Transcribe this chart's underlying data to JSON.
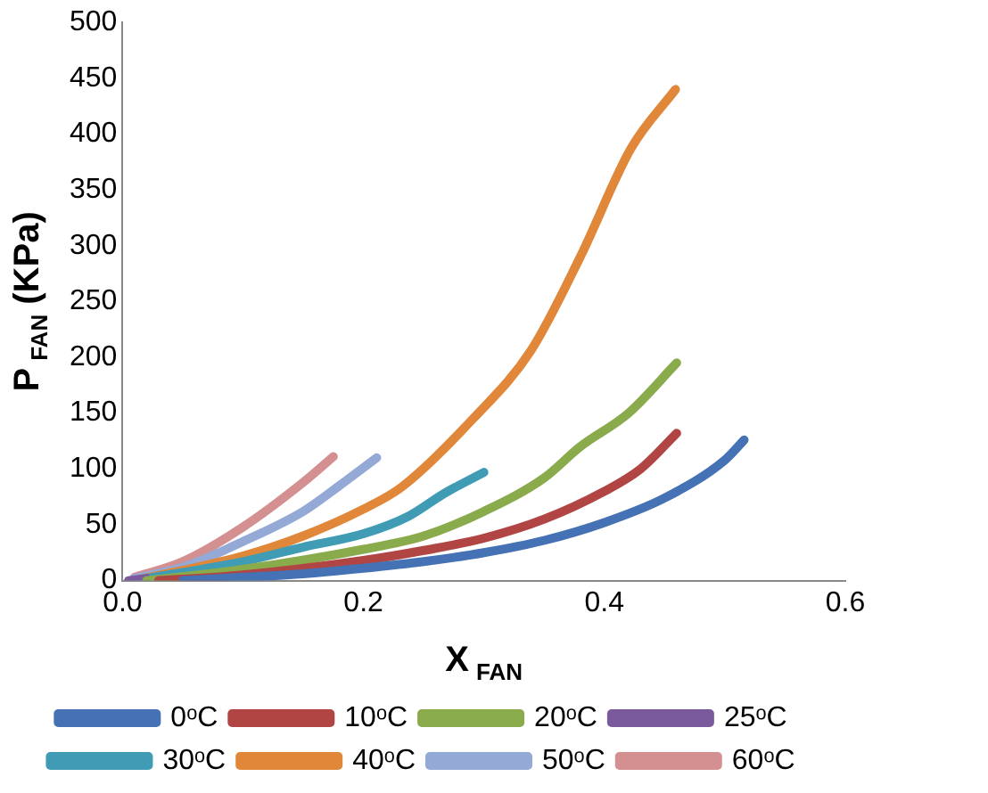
{
  "chart_data": {
    "type": "line",
    "xlabel": "X$_{FAN}$",
    "ylabel": "P$_{FAN}$ (KPa)",
    "xlim": [
      0,
      0.6
    ],
    "xticks": [
      {
        "value": 0,
        "label": "0.0"
      },
      0.2,
      0.4,
      0.6
    ],
    "ylim": [
      0,
      500
    ],
    "yticks": [
      0,
      50,
      100,
      150,
      200,
      250,
      300,
      350,
      400,
      450,
      500
    ],
    "grid": false,
    "legend": "bottom",
    "marker": "none",
    "line_style": "solid",
    "series": [
      {
        "name": "0ᵒC",
        "color": "#4472b4",
        "x": [
          0.05,
          0.1,
          0.15,
          0.2,
          0.25,
          0.3,
          0.35,
          0.4,
          0.45,
          0.5,
          0.516
        ],
        "values": [
          0,
          3,
          6,
          11,
          17,
          25,
          36,
          52,
          74,
          108,
          126
        ]
      },
      {
        "name": "10ᵒC",
        "color": "#b04544",
        "x": [
          0.03,
          0.1,
          0.2,
          0.25,
          0.3,
          0.35,
          0.4,
          0.43,
          0.46
        ],
        "values": [
          0,
          5,
          18,
          27,
          38,
          55,
          80,
          100,
          132
        ]
      },
      {
        "name": "20ᵒC",
        "color": "#8aab4c",
        "x": [
          0.02,
          0.1,
          0.2,
          0.25,
          0.3,
          0.35,
          0.38,
          0.42,
          0.46
        ],
        "values": [
          0,
          10,
          28,
          40,
          62,
          92,
          120,
          150,
          195
        ]
      },
      {
        "name": "25ᵒC",
        "color": "#7a5a9c",
        "x": [
          0.005,
          0.02
        ],
        "values": [
          0,
          2
        ]
      },
      {
        "name": "30ᵒC",
        "color": "#3f9cb4",
        "x": [
          0.01,
          0.1,
          0.15,
          0.2,
          0.238,
          0.267,
          0.3
        ],
        "values": [
          0,
          17,
          30,
          42,
          58,
          78,
          97
        ]
      },
      {
        "name": "40ᵒC",
        "color": "#e0873a",
        "x": [
          0.01,
          0.1,
          0.15,
          0.2,
          0.232,
          0.291,
          0.339,
          0.38,
          0.422,
          0.459
        ],
        "values": [
          0,
          22,
          40,
          64,
          84,
          145,
          206,
          290,
          387,
          440
        ]
      },
      {
        "name": "50ᵒC",
        "color": "#94a9d6",
        "x": [
          0.01,
          0.05,
          0.1,
          0.15,
          0.18,
          0.211
        ],
        "values": [
          2,
          12,
          35,
          62,
          85,
          110
        ]
      },
      {
        "name": "60ᵒC",
        "color": "#d49090",
        "x": [
          0.01,
          0.05,
          0.1,
          0.15,
          0.175
        ],
        "values": [
          3,
          17,
          48,
          88,
          111
        ]
      }
    ]
  }
}
